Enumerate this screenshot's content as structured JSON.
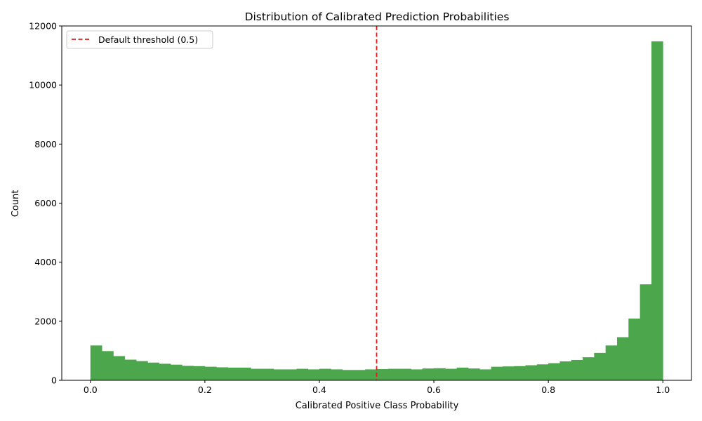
{
  "chart_data": {
    "type": "bar",
    "title": "Distribution of Calibrated Prediction Probabilities",
    "xlabel": "Calibrated Positive Class Probability",
    "ylabel": "Count",
    "xlim": [
      -0.05,
      1.05
    ],
    "ylim": [
      0,
      12000
    ],
    "xticks": [
      "0.0",
      "0.2",
      "0.4",
      "0.6",
      "0.8",
      "1.0"
    ],
    "yticks": [
      "0",
      "2000",
      "4000",
      "6000",
      "8000",
      "10000",
      "12000"
    ],
    "bin_start": 0.0,
    "bin_width": 0.02,
    "counts": [
      1180,
      990,
      820,
      700,
      650,
      600,
      560,
      530,
      490,
      480,
      460,
      440,
      430,
      430,
      390,
      390,
      370,
      370,
      390,
      370,
      390,
      370,
      350,
      350,
      370,
      380,
      390,
      390,
      370,
      400,
      410,
      390,
      430,
      400,
      370,
      460,
      470,
      480,
      510,
      540,
      580,
      640,
      690,
      780,
      930,
      1180,
      1460,
      2090,
      3250,
      11480
    ],
    "bar_color": "#4ca64c",
    "threshold": {
      "x": 0.5,
      "label": "Default threshold (0.5)",
      "color": "#e31a1c"
    },
    "legend_position": "upper-left",
    "grid": false
  }
}
